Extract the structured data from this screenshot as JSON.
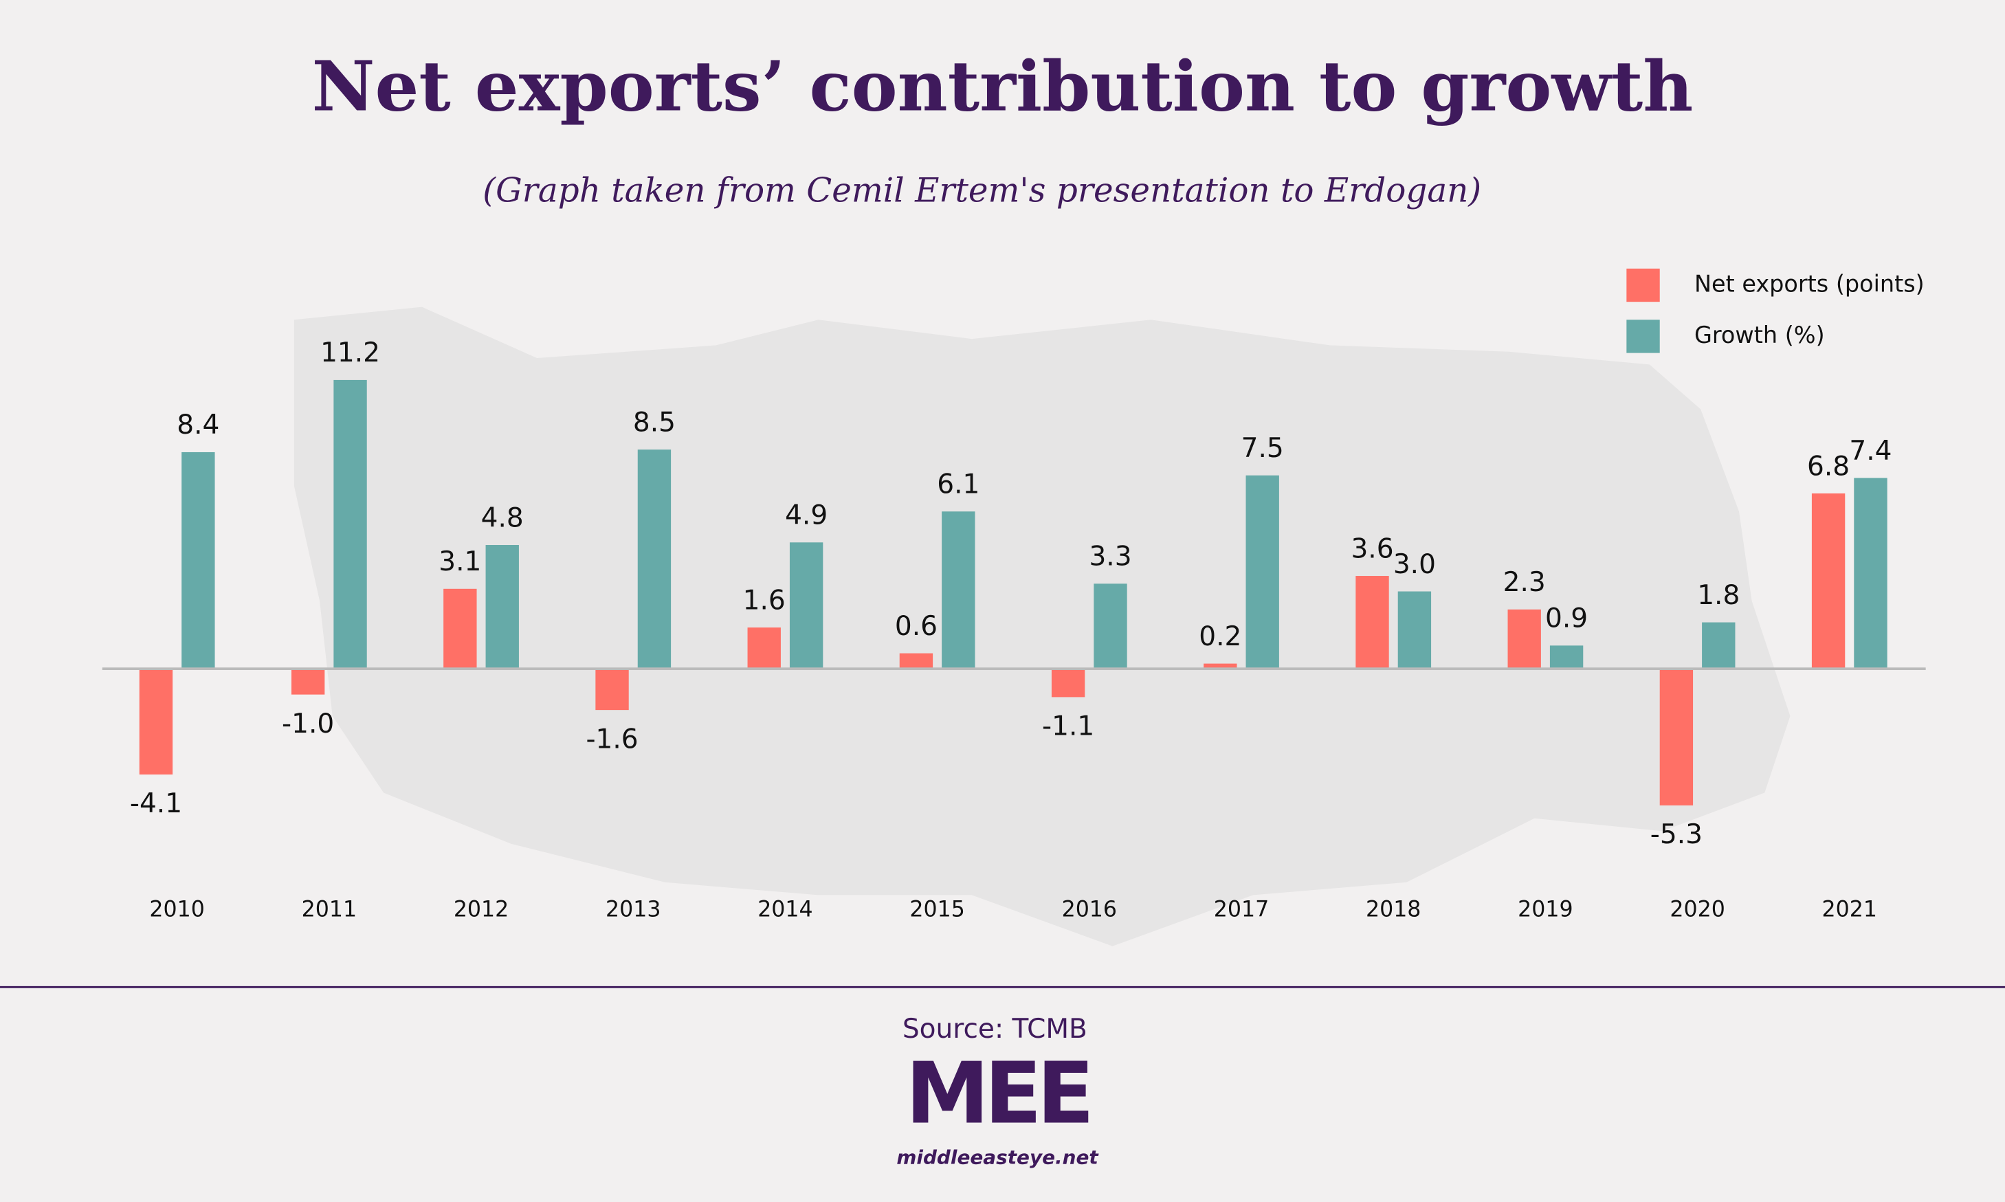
{
  "chart_data": {
    "type": "bar",
    "title": "Net exports’ contribution to growth",
    "subtitle": "(Graph taken from Cemil Ertem's presentation to Erdogan)",
    "categories": [
      "2010",
      "2011",
      "2012",
      "2013",
      "2014",
      "2015",
      "2016",
      "2017",
      "2018",
      "2019",
      "2020",
      "2021"
    ],
    "series": [
      {
        "name": "Net exports (points)",
        "color": "#ff7066",
        "values": [
          -4.1,
          -1.0,
          3.1,
          -1.6,
          1.6,
          0.6,
          -1.1,
          0.2,
          3.6,
          2.3,
          -5.3,
          6.8
        ],
        "value_labels": [
          "-4.1",
          "-1.0",
          "3.1",
          "-1.6",
          "1.6",
          "0.6",
          "-1.1",
          "0.2",
          "3.6",
          "2.3",
          "-5.3",
          "6.8"
        ]
      },
      {
        "name": "Growth (%)",
        "color": "#66aaa8",
        "values": [
          8.4,
          11.2,
          4.8,
          8.5,
          4.9,
          6.1,
          3.3,
          7.5,
          3.0,
          0.9,
          1.8,
          7.4
        ],
        "value_labels": [
          "8.4",
          "11.2",
          "4.8",
          "8.5",
          "4.9",
          "6.1",
          "3.3",
          "7.5",
          "3.0",
          "0.9",
          "1.8",
          "7.4"
        ]
      }
    ],
    "ylim": [
      -6,
      12
    ],
    "legend": "top-right",
    "source": "Source: TCMB",
    "logo": "MEE",
    "website": "middleeasteye.net"
  }
}
